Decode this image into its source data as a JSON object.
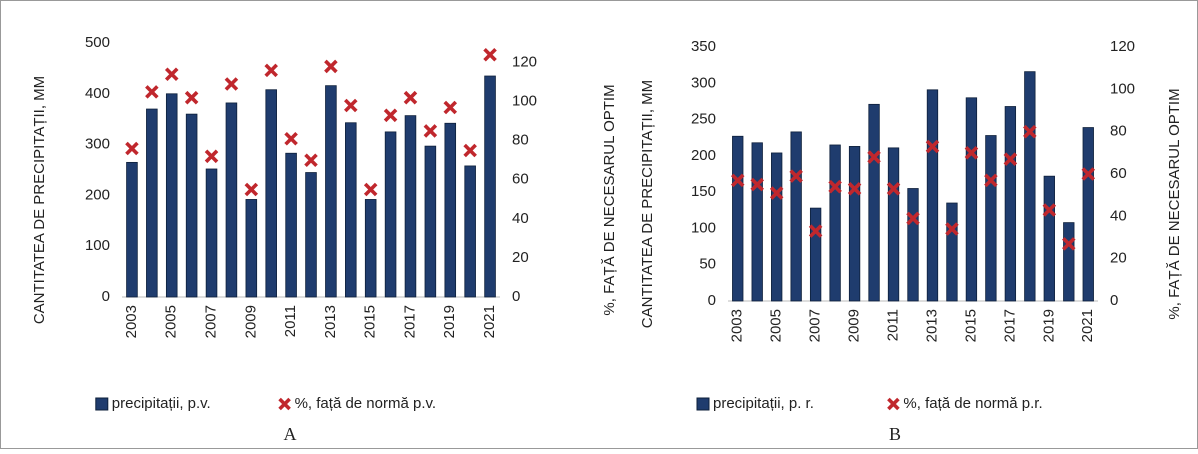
{
  "chart_data": [
    {
      "type": "bar",
      "categories": [
        "2003",
        null,
        "2005",
        null,
        "2007",
        null,
        "2009",
        null,
        "2011",
        null,
        "2013",
        null,
        "2015",
        null,
        "2017",
        null,
        "2019",
        null,
        "2021"
      ],
      "series": [
        {
          "name": "precipitații, p.v.",
          "type": "bar",
          "color": "#1f3c6e",
          "values": [
            265,
            370,
            400,
            360,
            252,
            382,
            192,
            408,
            283,
            245,
            416,
            343,
            192,
            325,
            357,
            297,
            342,
            258,
            435
          ]
        },
        {
          "name": "%, față de normă p.v.",
          "type": "scatter",
          "axis": "y2",
          "color": "#c0272d",
          "values": [
            76,
            105,
            114,
            102,
            72,
            109,
            55,
            116,
            81,
            70,
            118,
            98,
            55,
            93,
            102,
            85,
            97,
            75,
            124
          ]
        }
      ],
      "y_label": "CANTITATEA DE PRECIPITAȚII, MM",
      "y2_label": "%, FAȚĂ DE NECESARUL OPTIM",
      "ylim": [
        0,
        500
      ],
      "yticks": [
        0,
        100,
        200,
        300,
        400,
        500
      ],
      "y2lim": [
        0,
        130
      ],
      "y2ticks": [
        0,
        20,
        40,
        60,
        80,
        100,
        120
      ],
      "legend": "bottom",
      "panel_label": "A"
    },
    {
      "type": "bar",
      "categories": [
        "2003",
        null,
        "2005",
        null,
        "2007",
        null,
        "2009",
        null,
        "2011",
        null,
        "2013",
        null,
        "2015",
        null,
        "2017",
        null,
        "2019",
        null,
        "2021"
      ],
      "series": [
        {
          "name": "precipitații, p. r.",
          "type": "bar",
          "color": "#1f3c6e",
          "values": [
            227,
            218,
            204,
            233,
            128,
            215,
            213,
            271,
            211,
            155,
            291,
            135,
            280,
            228,
            268,
            316,
            172,
            108,
            239
          ]
        },
        {
          "name": "%, față de normă p.r.",
          "type": "scatter",
          "axis": "y2",
          "color": "#c0272d",
          "values": [
            57,
            55,
            51,
            59,
            33,
            54,
            53,
            68,
            53,
            39,
            73,
            34,
            70,
            57,
            67,
            80,
            43,
            27,
            60
          ]
        }
      ],
      "y_label": "CANTITATEA DE PRECIPITAȚII, MM",
      "y2_label": "%, FAȚĂ DE NECESARUL OPTIM",
      "ylim": [
        0,
        350
      ],
      "yticks": [
        0,
        50,
        100,
        150,
        200,
        250,
        300,
        350
      ],
      "y2lim": [
        0,
        120
      ],
      "y2ticks": [
        0,
        20,
        40,
        60,
        80,
        100,
        120
      ],
      "legend": "bottom",
      "panel_label": "B"
    }
  ]
}
